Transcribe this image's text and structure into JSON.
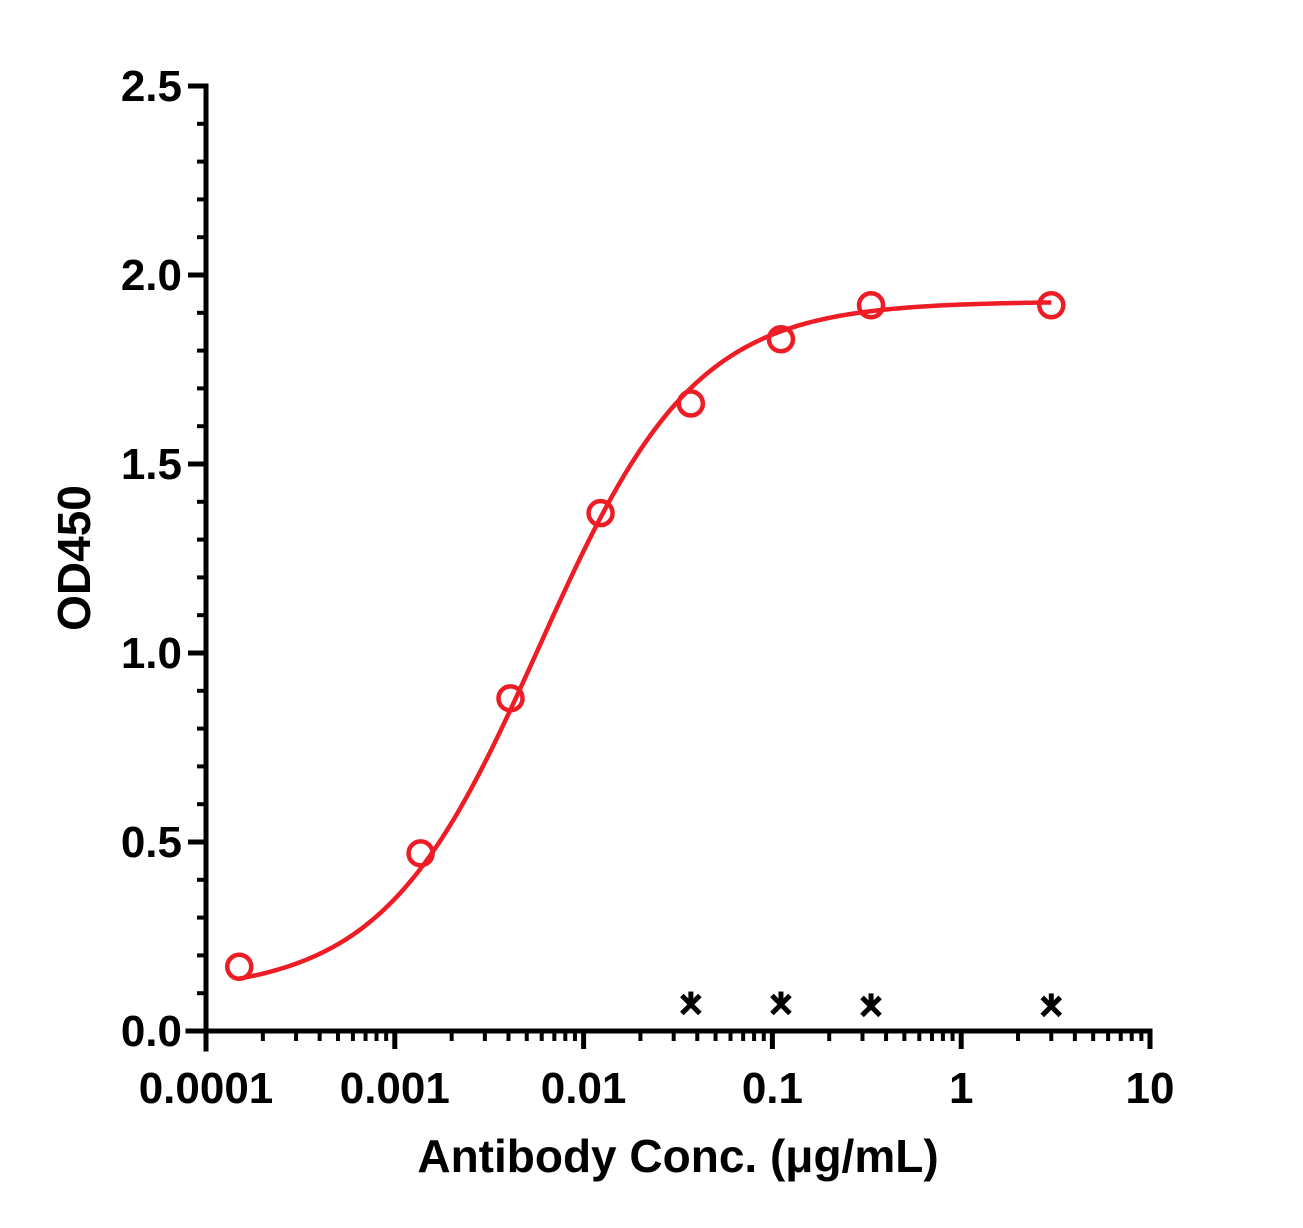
{
  "chart_data": {
    "type": "scatter",
    "title": "",
    "xlabel": "Antibody Conc. (μg/mL)",
    "ylabel": "OD450",
    "x_scale": "log",
    "xlim": [
      0.0001,
      10
    ],
    "ylim": [
      0,
      2.5
    ],
    "x_tick_labels": [
      "0.0001",
      "0.001",
      "0.01",
      "0.1",
      "1",
      "10"
    ],
    "y_tick_labels": [
      "0.0",
      "0.5",
      "1.0",
      "1.5",
      "2.0",
      "2.5"
    ],
    "grid": false,
    "legend": "none",
    "series": [
      {
        "marker": "open-circle",
        "color": "#ee1c25",
        "fit": "sigmoidal-4PL",
        "x": [
          0.00015,
          0.00137,
          0.0041,
          0.0123,
          0.037,
          0.111,
          0.333,
          3.0
        ],
        "y": [
          0.17,
          0.47,
          0.88,
          1.37,
          1.66,
          1.83,
          1.92,
          1.92
        ]
      },
      {
        "marker": "x-star",
        "color": "#000000",
        "x": [
          0.037,
          0.111,
          0.333,
          3.0
        ],
        "y": [
          0.07,
          0.07,
          0.065,
          0.065
        ]
      }
    ]
  }
}
